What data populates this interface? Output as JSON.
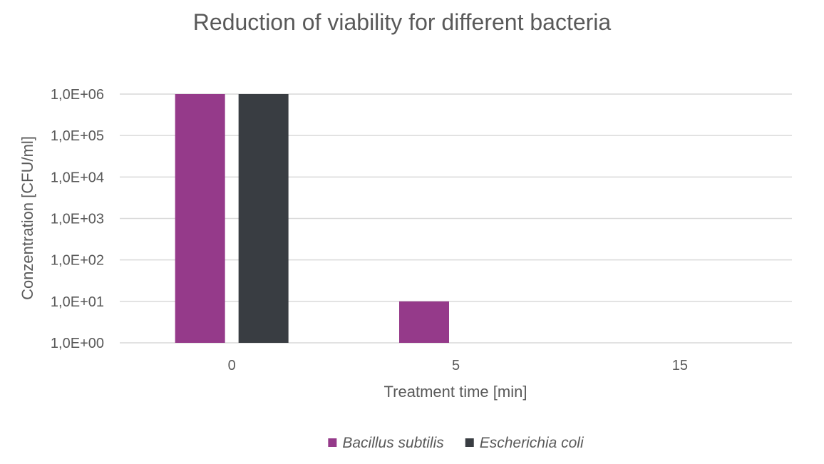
{
  "chart_data": {
    "type": "bar",
    "title": "Reduction of viability for different bacteria",
    "xlabel": "Treatment time [min]",
    "ylabel": "Conzentration [CFU/ml]",
    "y_scale": "log",
    "ylim": [
      1,
      1000000
    ],
    "y_ticks": [
      1,
      10,
      100,
      1000,
      10000,
      100000,
      1000000
    ],
    "y_tick_labels": [
      "1,0E+00",
      "1,0E+01",
      "1,0E+02",
      "1,0E+03",
      "1,0E+04",
      "1,0E+05",
      "1,0E+06"
    ],
    "categories": [
      "0",
      "5",
      "15"
    ],
    "series": [
      {
        "name": "Bacillus subtilis",
        "color": "#953a8a",
        "values": [
          1000000,
          10,
          1
        ]
      },
      {
        "name": "Escherichia coli",
        "color": "#393d42",
        "values": [
          1000000,
          1,
          1
        ]
      }
    ],
    "grid": true,
    "legend_position": "bottom",
    "colors": {
      "text": "#595959",
      "gridline": "#d9d9d9",
      "title": "#595959"
    }
  }
}
